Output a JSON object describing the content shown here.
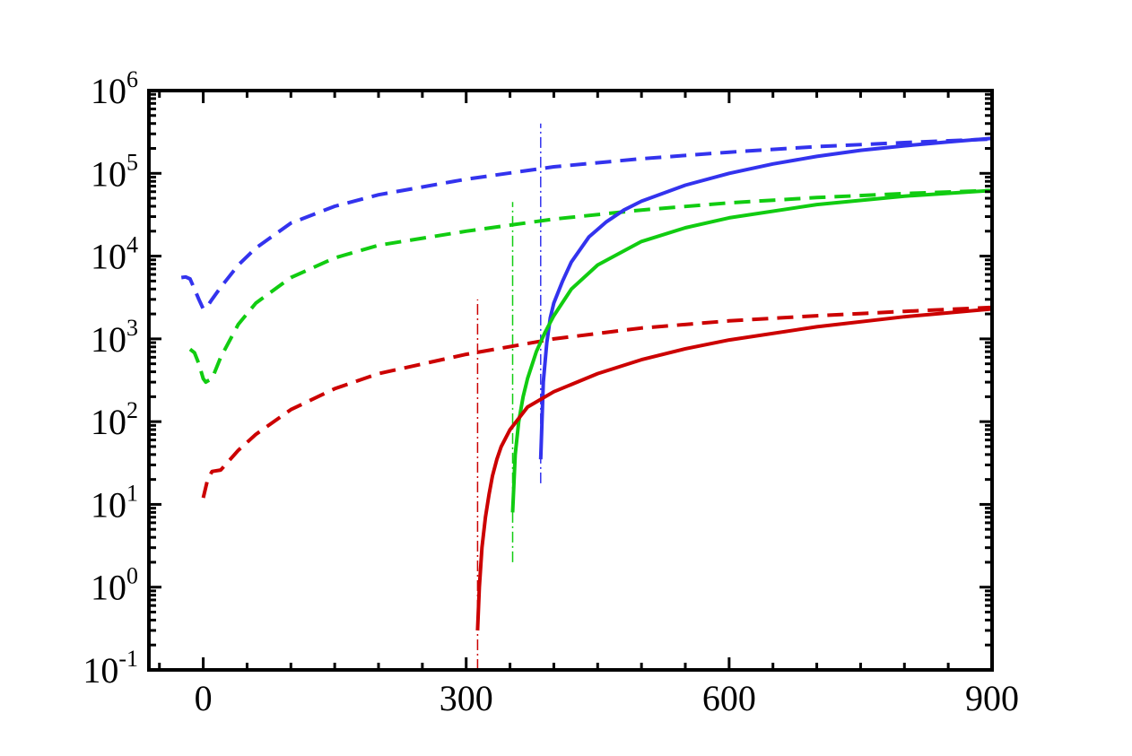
{
  "chart_data": {
    "type": "line",
    "title": "",
    "xlabel": "",
    "ylabel": "",
    "xlim": [
      -62,
      900
    ],
    "ylim": [
      0.1,
      1000000
    ],
    "y_scale": "log",
    "grid": false,
    "legend": "none",
    "x_ticks": [
      {
        "value": 0,
        "label": "0"
      },
      {
        "value": 300,
        "label": "300"
      },
      {
        "value": 600,
        "label": "600"
      },
      {
        "value": 900,
        "label": "900"
      }
    ],
    "y_ticks": [
      {
        "value": 0.1,
        "base": "10",
        "exp": "-1"
      },
      {
        "value": 1,
        "base": "10",
        "exp": "0"
      },
      {
        "value": 10,
        "base": "10",
        "exp": "1"
      },
      {
        "value": 100,
        "base": "10",
        "exp": "2"
      },
      {
        "value": 1000,
        "base": "10",
        "exp": "3"
      },
      {
        "value": 10000,
        "base": "10",
        "exp": "4"
      },
      {
        "value": 100000,
        "base": "10",
        "exp": "5"
      },
      {
        "value": 1000000,
        "base": "10",
        "exp": "6"
      }
    ],
    "series": [
      {
        "color": "#3333ee",
        "style": "dashed",
        "x": [
          -25,
          -20,
          -15,
          -10,
          -5,
          0,
          5,
          10,
          20,
          40,
          60,
          100,
          150,
          200,
          300,
          400,
          500,
          600,
          700,
          800,
          900
        ],
        "y": [
          5500,
          5600,
          5300,
          4000,
          3000,
          2300,
          2500,
          3000,
          4200,
          7800,
          12500,
          25000,
          40000,
          55000,
          85000,
          120000,
          150000,
          180000,
          210000,
          235000,
          260000
        ]
      },
      {
        "color": "#11cc11",
        "style": "dashed",
        "x": [
          -15,
          -10,
          -5,
          0,
          3,
          5,
          10,
          20,
          40,
          60,
          100,
          150,
          200,
          300,
          400,
          500,
          600,
          700,
          800,
          900
        ],
        "y": [
          750,
          680,
          500,
          330,
          300,
          310,
          330,
          600,
          1500,
          2700,
          5500,
          9500,
          13500,
          20000,
          28000,
          36000,
          44000,
          51000,
          57000,
          62000
        ]
      },
      {
        "color": "#cc0000",
        "style": "dashed",
        "x": [
          0,
          5,
          10,
          20,
          40,
          60,
          100,
          150,
          200,
          300,
          400,
          500,
          600,
          700,
          800,
          900
        ],
        "y": [
          12,
          20,
          25,
          26,
          45,
          70,
          140,
          250,
          380,
          650,
          1000,
          1350,
          1650,
          1900,
          2150,
          2400
        ]
      },
      {
        "color": "#3333ee",
        "style": "solid",
        "x": [
          385,
          388,
          392,
          396,
          400,
          410,
          420,
          440,
          460,
          480,
          500,
          550,
          600,
          650,
          700,
          750,
          800,
          850,
          900
        ],
        "y": [
          35,
          300,
          900,
          1800,
          2700,
          5000,
          8500,
          17000,
          26000,
          36000,
          46000,
          72000,
          100000,
          130000,
          160000,
          190000,
          215000,
          240000,
          265000
        ]
      },
      {
        "color": "#11cc11",
        "style": "solid",
        "x": [
          353,
          356,
          360,
          365,
          370,
          380,
          390,
          400,
          420,
          450,
          500,
          550,
          600,
          700,
          800,
          900
        ],
        "y": [
          8,
          40,
          100,
          200,
          330,
          700,
          1200,
          1900,
          4000,
          7800,
          15000,
          22000,
          29000,
          42000,
          53000,
          62000
        ]
      },
      {
        "color": "#cc0000",
        "style": "solid",
        "x": [
          313,
          315,
          318,
          322,
          326,
          330,
          335,
          340,
          350,
          370,
          400,
          450,
          500,
          550,
          600,
          700,
          800,
          900
        ],
        "y": [
          0.3,
          1,
          3,
          7,
          13,
          22,
          35,
          50,
          80,
          150,
          230,
          380,
          560,
          760,
          970,
          1400,
          1850,
          2300
        ]
      }
    ],
    "reference_lines": [
      {
        "color": "#cc0000",
        "x": 313,
        "y_from": 0.1,
        "y_to": 3000
      },
      {
        "color": "#11cc11",
        "x": 353,
        "y_from": 2,
        "y_to": 45000
      },
      {
        "color": "#3333ee",
        "x": 385,
        "y_from": 18,
        "y_to": 400000
      }
    ]
  }
}
